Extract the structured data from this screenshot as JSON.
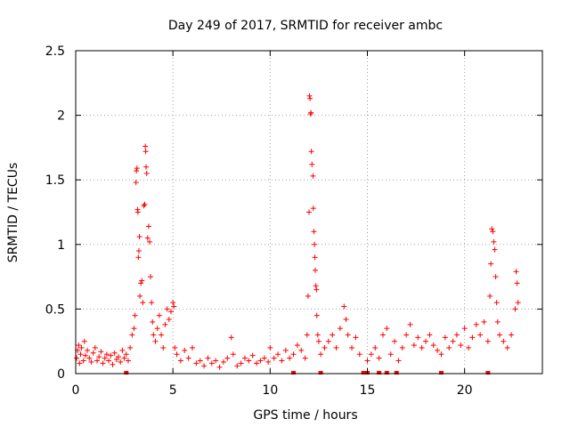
{
  "chart_data": {
    "type": "scatter",
    "title": "Day 249 of 2017, SRMTID for receiver ambc",
    "xlabel": "GPS time / hours",
    "ylabel": "SRMTID / TECUs",
    "xlim": [
      0,
      24
    ],
    "ylim": [
      0,
      2.5
    ],
    "x_ticks": [
      0,
      5,
      10,
      15,
      20
    ],
    "x_tick_labels": [
      "0",
      "5",
      "10",
      "15",
      "20"
    ],
    "y_ticks": [
      0,
      0.5,
      1,
      1.5,
      2,
      2.5
    ],
    "y_tick_labels": [
      "0",
      "0.5",
      "1",
      "1.5",
      "2",
      "2.5"
    ],
    "grid": true,
    "marker": "plus",
    "color": "#ff0000",
    "series": [
      {
        "name": "SRMTID",
        "points": [
          [
            0.05,
            0.12
          ],
          [
            0.1,
            0.18
          ],
          [
            0.15,
            0.22
          ],
          [
            0.2,
            0.08
          ],
          [
            0.25,
            0.15
          ],
          [
            0.3,
            0.2
          ],
          [
            0.4,
            0.1
          ],
          [
            0.45,
            0.25
          ],
          [
            0.5,
            0.14
          ],
          [
            0.6,
            0.18
          ],
          [
            0.7,
            0.12
          ],
          [
            0.8,
            0.09
          ],
          [
            0.9,
            0.16
          ],
          [
            1.0,
            0.2
          ],
          [
            1.1,
            0.1
          ],
          [
            1.2,
            0.13
          ],
          [
            1.3,
            0.17
          ],
          [
            1.4,
            0.08
          ],
          [
            1.5,
            0.12
          ],
          [
            1.6,
            0.15
          ],
          [
            1.7,
            0.1
          ],
          [
            1.8,
            0.14
          ],
          [
            1.9,
            0.07
          ],
          [
            2.0,
            0.16
          ],
          [
            2.1,
            0.11
          ],
          [
            2.2,
            0.13
          ],
          [
            2.3,
            0.09
          ],
          [
            2.4,
            0.18
          ],
          [
            2.5,
            0.12
          ],
          [
            2.6,
            0.15
          ],
          [
            2.7,
            0.1
          ],
          [
            2.8,
            0.2
          ],
          [
            2.9,
            0.3
          ],
          [
            3.0,
            0.35
          ],
          [
            3.05,
            0.45
          ],
          [
            3.1,
            1.48
          ],
          [
            3.12,
            1.57
          ],
          [
            3.15,
            1.59
          ],
          [
            3.18,
            1.27
          ],
          [
            3.2,
            1.25
          ],
          [
            3.22,
            0.9
          ],
          [
            3.25,
            0.95
          ],
          [
            3.28,
            1.06
          ],
          [
            3.3,
            0.6
          ],
          [
            3.35,
            0.7
          ],
          [
            3.4,
            0.72
          ],
          [
            3.45,
            0.55
          ],
          [
            3.5,
            1.3
          ],
          [
            3.55,
            1.31
          ],
          [
            3.58,
            1.76
          ],
          [
            3.6,
            1.72
          ],
          [
            3.62,
            1.6
          ],
          [
            3.65,
            1.55
          ],
          [
            3.7,
            1.05
          ],
          [
            3.75,
            1.14
          ],
          [
            3.8,
            1.02
          ],
          [
            3.85,
            0.75
          ],
          [
            3.9,
            0.55
          ],
          [
            3.95,
            0.4
          ],
          [
            4.0,
            0.3
          ],
          [
            4.1,
            0.25
          ],
          [
            4.2,
            0.35
          ],
          [
            4.3,
            0.45
          ],
          [
            4.4,
            0.3
          ],
          [
            4.5,
            0.2
          ],
          [
            4.6,
            0.38
          ],
          [
            4.7,
            0.5
          ],
          [
            4.8,
            0.42
          ],
          [
            4.9,
            0.48
          ],
          [
            5.0,
            0.55
          ],
          [
            5.05,
            0.52
          ],
          [
            5.1,
            0.2
          ],
          [
            5.2,
            0.15
          ],
          [
            5.4,
            0.1
          ],
          [
            5.6,
            0.18
          ],
          [
            5.8,
            0.12
          ],
          [
            6.0,
            0.2
          ],
          [
            6.2,
            0.08
          ],
          [
            6.4,
            0.1
          ],
          [
            6.6,
            0.06
          ],
          [
            6.8,
            0.12
          ],
          [
            7.0,
            0.08
          ],
          [
            7.2,
            0.1
          ],
          [
            7.4,
            0.05
          ],
          [
            7.6,
            0.09
          ],
          [
            7.8,
            0.12
          ],
          [
            8.0,
            0.28
          ],
          [
            8.1,
            0.15
          ],
          [
            8.3,
            0.06
          ],
          [
            8.5,
            0.08
          ],
          [
            8.7,
            0.12
          ],
          [
            8.9,
            0.1
          ],
          [
            9.1,
            0.14
          ],
          [
            9.3,
            0.08
          ],
          [
            9.5,
            0.1
          ],
          [
            9.7,
            0.12
          ],
          [
            9.9,
            0.09
          ],
          [
            10.0,
            0.2
          ],
          [
            10.2,
            0.12
          ],
          [
            10.4,
            0.15
          ],
          [
            10.6,
            0.1
          ],
          [
            10.8,
            0.18
          ],
          [
            11.0,
            0.12
          ],
          [
            11.2,
            0.15
          ],
          [
            11.4,
            0.22
          ],
          [
            11.6,
            0.18
          ],
          [
            11.8,
            0.12
          ],
          [
            11.9,
            0.3
          ],
          [
            11.95,
            0.6
          ],
          [
            12.0,
            1.25
          ],
          [
            12.02,
            2.15
          ],
          [
            12.05,
            2.13
          ],
          [
            12.08,
            2.01
          ],
          [
            12.1,
            2.02
          ],
          [
            12.12,
            1.72
          ],
          [
            12.15,
            1.62
          ],
          [
            12.2,
            1.53
          ],
          [
            12.22,
            1.28
          ],
          [
            12.25,
            1.1
          ],
          [
            12.28,
            1.0
          ],
          [
            12.3,
            0.9
          ],
          [
            12.32,
            0.8
          ],
          [
            12.35,
            0.68
          ],
          [
            12.38,
            0.65
          ],
          [
            12.4,
            0.45
          ],
          [
            12.45,
            0.3
          ],
          [
            12.5,
            0.25
          ],
          [
            12.6,
            0.15
          ],
          [
            12.8,
            0.2
          ],
          [
            13.0,
            0.25
          ],
          [
            13.2,
            0.3
          ],
          [
            13.4,
            0.2
          ],
          [
            13.6,
            0.35
          ],
          [
            13.8,
            0.52
          ],
          [
            13.9,
            0.42
          ],
          [
            14.0,
            0.3
          ],
          [
            14.2,
            0.2
          ],
          [
            14.4,
            0.28
          ],
          [
            14.6,
            0.15
          ],
          [
            15.0,
            0.1
          ],
          [
            15.2,
            0.15
          ],
          [
            15.4,
            0.2
          ],
          [
            15.6,
            0.12
          ],
          [
            15.8,
            0.3
          ],
          [
            16.0,
            0.35
          ],
          [
            16.2,
            0.15
          ],
          [
            16.4,
            0.25
          ],
          [
            16.6,
            0.1
          ],
          [
            16.8,
            0.2
          ],
          [
            17.0,
            0.3
          ],
          [
            17.2,
            0.38
          ],
          [
            17.4,
            0.22
          ],
          [
            17.6,
            0.28
          ],
          [
            17.8,
            0.2
          ],
          [
            18.0,
            0.25
          ],
          [
            18.2,
            0.3
          ],
          [
            18.4,
            0.22
          ],
          [
            18.6,
            0.18
          ],
          [
            18.8,
            0.15
          ],
          [
            19.0,
            0.28
          ],
          [
            19.2,
            0.2
          ],
          [
            19.4,
            0.25
          ],
          [
            19.6,
            0.3
          ],
          [
            19.8,
            0.22
          ],
          [
            20.0,
            0.35
          ],
          [
            20.2,
            0.2
          ],
          [
            20.4,
            0.28
          ],
          [
            20.6,
            0.38
          ],
          [
            20.8,
            0.3
          ],
          [
            21.0,
            0.4
          ],
          [
            21.2,
            0.25
          ],
          [
            21.3,
            0.6
          ],
          [
            21.35,
            0.85
          ],
          [
            21.4,
            1.12
          ],
          [
            21.45,
            1.1
          ],
          [
            21.5,
            1.02
          ],
          [
            21.55,
            0.96
          ],
          [
            21.6,
            0.75
          ],
          [
            21.65,
            0.55
          ],
          [
            21.7,
            0.4
          ],
          [
            21.8,
            0.3
          ],
          [
            22.0,
            0.25
          ],
          [
            22.2,
            0.2
          ],
          [
            22.4,
            0.3
          ],
          [
            22.6,
            0.5
          ],
          [
            22.65,
            0.79
          ],
          [
            22.7,
            0.7
          ],
          [
            22.75,
            0.55
          ]
        ],
        "zero_squares": [
          2.6,
          11.2,
          12.6,
          14.8,
          15.0,
          15.6,
          16.0,
          16.5,
          18.8,
          21.2
        ]
      }
    ]
  }
}
